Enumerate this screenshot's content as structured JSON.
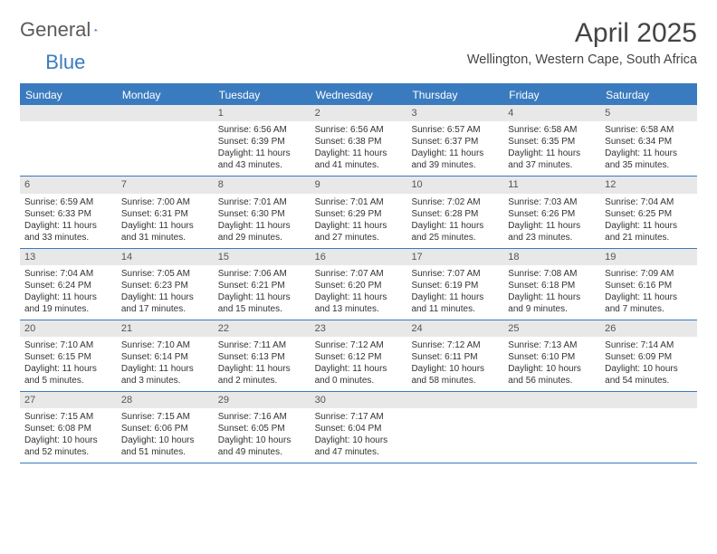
{
  "brand": {
    "name1": "General",
    "name2": "Blue"
  },
  "title": "April 2025",
  "location": "Wellington, Western Cape, South Africa",
  "colors": {
    "accent": "#3a7bbf",
    "header_bg": "#3a7bbf",
    "daynum_bg": "#e8e8e8",
    "text": "#333333"
  },
  "day_headers": [
    "Sunday",
    "Monday",
    "Tuesday",
    "Wednesday",
    "Thursday",
    "Friday",
    "Saturday"
  ],
  "weeks": [
    [
      {
        "empty": true
      },
      {
        "empty": true
      },
      {
        "n": "1",
        "sr": "Sunrise: 6:56 AM",
        "ss": "Sunset: 6:39 PM",
        "dl1": "Daylight: 11 hours",
        "dl2": "and 43 minutes."
      },
      {
        "n": "2",
        "sr": "Sunrise: 6:56 AM",
        "ss": "Sunset: 6:38 PM",
        "dl1": "Daylight: 11 hours",
        "dl2": "and 41 minutes."
      },
      {
        "n": "3",
        "sr": "Sunrise: 6:57 AM",
        "ss": "Sunset: 6:37 PM",
        "dl1": "Daylight: 11 hours",
        "dl2": "and 39 minutes."
      },
      {
        "n": "4",
        "sr": "Sunrise: 6:58 AM",
        "ss": "Sunset: 6:35 PM",
        "dl1": "Daylight: 11 hours",
        "dl2": "and 37 minutes."
      },
      {
        "n": "5",
        "sr": "Sunrise: 6:58 AM",
        "ss": "Sunset: 6:34 PM",
        "dl1": "Daylight: 11 hours",
        "dl2": "and 35 minutes."
      }
    ],
    [
      {
        "n": "6",
        "sr": "Sunrise: 6:59 AM",
        "ss": "Sunset: 6:33 PM",
        "dl1": "Daylight: 11 hours",
        "dl2": "and 33 minutes."
      },
      {
        "n": "7",
        "sr": "Sunrise: 7:00 AM",
        "ss": "Sunset: 6:31 PM",
        "dl1": "Daylight: 11 hours",
        "dl2": "and 31 minutes."
      },
      {
        "n": "8",
        "sr": "Sunrise: 7:01 AM",
        "ss": "Sunset: 6:30 PM",
        "dl1": "Daylight: 11 hours",
        "dl2": "and 29 minutes."
      },
      {
        "n": "9",
        "sr": "Sunrise: 7:01 AM",
        "ss": "Sunset: 6:29 PM",
        "dl1": "Daylight: 11 hours",
        "dl2": "and 27 minutes."
      },
      {
        "n": "10",
        "sr": "Sunrise: 7:02 AM",
        "ss": "Sunset: 6:28 PM",
        "dl1": "Daylight: 11 hours",
        "dl2": "and 25 minutes."
      },
      {
        "n": "11",
        "sr": "Sunrise: 7:03 AM",
        "ss": "Sunset: 6:26 PM",
        "dl1": "Daylight: 11 hours",
        "dl2": "and 23 minutes."
      },
      {
        "n": "12",
        "sr": "Sunrise: 7:04 AM",
        "ss": "Sunset: 6:25 PM",
        "dl1": "Daylight: 11 hours",
        "dl2": "and 21 minutes."
      }
    ],
    [
      {
        "n": "13",
        "sr": "Sunrise: 7:04 AM",
        "ss": "Sunset: 6:24 PM",
        "dl1": "Daylight: 11 hours",
        "dl2": "and 19 minutes."
      },
      {
        "n": "14",
        "sr": "Sunrise: 7:05 AM",
        "ss": "Sunset: 6:23 PM",
        "dl1": "Daylight: 11 hours",
        "dl2": "and 17 minutes."
      },
      {
        "n": "15",
        "sr": "Sunrise: 7:06 AM",
        "ss": "Sunset: 6:21 PM",
        "dl1": "Daylight: 11 hours",
        "dl2": "and 15 minutes."
      },
      {
        "n": "16",
        "sr": "Sunrise: 7:07 AM",
        "ss": "Sunset: 6:20 PM",
        "dl1": "Daylight: 11 hours",
        "dl2": "and 13 minutes."
      },
      {
        "n": "17",
        "sr": "Sunrise: 7:07 AM",
        "ss": "Sunset: 6:19 PM",
        "dl1": "Daylight: 11 hours",
        "dl2": "and 11 minutes."
      },
      {
        "n": "18",
        "sr": "Sunrise: 7:08 AM",
        "ss": "Sunset: 6:18 PM",
        "dl1": "Daylight: 11 hours",
        "dl2": "and 9 minutes."
      },
      {
        "n": "19",
        "sr": "Sunrise: 7:09 AM",
        "ss": "Sunset: 6:16 PM",
        "dl1": "Daylight: 11 hours",
        "dl2": "and 7 minutes."
      }
    ],
    [
      {
        "n": "20",
        "sr": "Sunrise: 7:10 AM",
        "ss": "Sunset: 6:15 PM",
        "dl1": "Daylight: 11 hours",
        "dl2": "and 5 minutes."
      },
      {
        "n": "21",
        "sr": "Sunrise: 7:10 AM",
        "ss": "Sunset: 6:14 PM",
        "dl1": "Daylight: 11 hours",
        "dl2": "and 3 minutes."
      },
      {
        "n": "22",
        "sr": "Sunrise: 7:11 AM",
        "ss": "Sunset: 6:13 PM",
        "dl1": "Daylight: 11 hours",
        "dl2": "and 2 minutes."
      },
      {
        "n": "23",
        "sr": "Sunrise: 7:12 AM",
        "ss": "Sunset: 6:12 PM",
        "dl1": "Daylight: 11 hours",
        "dl2": "and 0 minutes."
      },
      {
        "n": "24",
        "sr": "Sunrise: 7:12 AM",
        "ss": "Sunset: 6:11 PM",
        "dl1": "Daylight: 10 hours",
        "dl2": "and 58 minutes."
      },
      {
        "n": "25",
        "sr": "Sunrise: 7:13 AM",
        "ss": "Sunset: 6:10 PM",
        "dl1": "Daylight: 10 hours",
        "dl2": "and 56 minutes."
      },
      {
        "n": "26",
        "sr": "Sunrise: 7:14 AM",
        "ss": "Sunset: 6:09 PM",
        "dl1": "Daylight: 10 hours",
        "dl2": "and 54 minutes."
      }
    ],
    [
      {
        "n": "27",
        "sr": "Sunrise: 7:15 AM",
        "ss": "Sunset: 6:08 PM",
        "dl1": "Daylight: 10 hours",
        "dl2": "and 52 minutes."
      },
      {
        "n": "28",
        "sr": "Sunrise: 7:15 AM",
        "ss": "Sunset: 6:06 PM",
        "dl1": "Daylight: 10 hours",
        "dl2": "and 51 minutes."
      },
      {
        "n": "29",
        "sr": "Sunrise: 7:16 AM",
        "ss": "Sunset: 6:05 PM",
        "dl1": "Daylight: 10 hours",
        "dl2": "and 49 minutes."
      },
      {
        "n": "30",
        "sr": "Sunrise: 7:17 AM",
        "ss": "Sunset: 6:04 PM",
        "dl1": "Daylight: 10 hours",
        "dl2": "and 47 minutes."
      },
      {
        "empty": true
      },
      {
        "empty": true
      },
      {
        "empty": true
      }
    ]
  ]
}
